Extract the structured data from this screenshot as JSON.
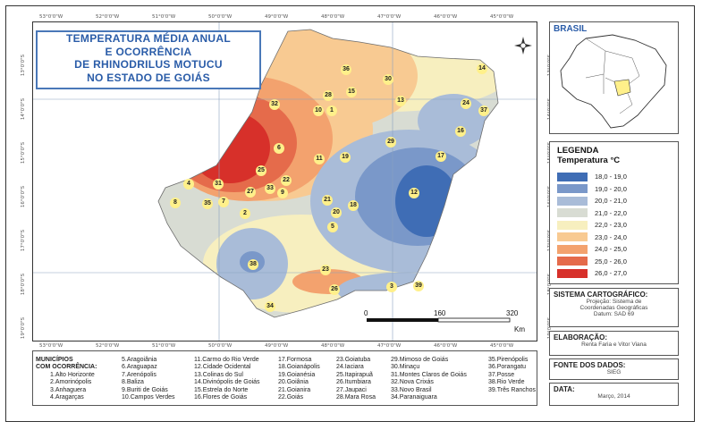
{
  "title": [
    "TEMPERATURA MÉDIA ANUAL",
    "E OCORRÊNCIA",
    "DE RHINODRILUS MOTUCU",
    "NO ESTADO DE GOIÁS"
  ],
  "inset_title": "BRASIL",
  "legend": {
    "heading": "LEGENDA",
    "subheading": "Temperatura °C",
    "classes": [
      {
        "range": "18,0 - 19,0",
        "color": "#3f6db5"
      },
      {
        "range": "19,0 - 20,0",
        "color": "#7a98c9"
      },
      {
        "range": "20,0 - 21,0",
        "color": "#a9bcd8"
      },
      {
        "range": "21,0 - 22,0",
        "color": "#d8dcd3"
      },
      {
        "range": "22,0 - 23,0",
        "color": "#f7efbf"
      },
      {
        "range": "23,0 - 24,0",
        "color": "#f8ca92"
      },
      {
        "range": "24,0 - 25,0",
        "color": "#f3a26e"
      },
      {
        "range": "25,0 - 26,0",
        "color": "#e56b4b"
      },
      {
        "range": "26,0 - 27,0",
        "color": "#d7302a"
      }
    ]
  },
  "cartographic": {
    "heading": "SISTEMA CARTOGRÁFICO:",
    "line1": "Projeção: Sistema de",
    "line2": "Coordenadas Geográficas",
    "datum": "Datum: SAD 69"
  },
  "elaboration": {
    "heading": "ELABORAÇÃO:",
    "text": "Renta Faria e Vitor Viana"
  },
  "data_source": {
    "heading": "FONTE DOS DADOS:",
    "text": "SIEG"
  },
  "date": {
    "heading": "DATA:",
    "text": "Março, 2014"
  },
  "scale": {
    "zero": "0",
    "mid": "160",
    "max": "320",
    "unit": "Km"
  },
  "municipalities_heading": [
    "MUNICÍPIOS",
    "COM OCORRÊNCIA:"
  ],
  "municipalities": [
    [
      "1.Alto Horizonte",
      "2.Amorinópolis",
      "3.Anhaguera",
      "4.Aragarças"
    ],
    [
      "5.Aragoiânia",
      "6.Araguapaz",
      "7.Arenópolis",
      "8.Baliza",
      "9.Buriti de Goiás",
      "10.Campos Verdes"
    ],
    [
      "11.Carmo do Rio Verde",
      "12.Cidade Ocidental",
      "13.Colinas do Sul",
      "14.Divinópolis de Goiás",
      "15.Estrela do Norte",
      "16.Flores de Goiás"
    ],
    [
      "17.Formosa",
      "18.Goianápolis",
      "19.Goianésia",
      "20.Goiânia",
      "21.Goianira",
      "22.Goiás"
    ],
    [
      "23.Goiatuba",
      "24.Iaciara",
      "25.Itapirapuã",
      "26.Itumbiara",
      "27.Jaupaci",
      "28.Mara Rosa"
    ],
    [
      "29.Mimoso de Goiás",
      "30.Minaçu",
      "31.Montes Claros de Goiás",
      "32.Nova Crixás",
      "33.Novo Brasil",
      "34.Paranaiguara"
    ],
    [
      "35.Pirenópolis",
      "36.Porangatu",
      "37.Posse",
      "38.Rio Verde",
      "39.Três Ranchos"
    ]
  ],
  "map_labels": [
    "1",
    "2",
    "3",
    "4",
    "5",
    "6",
    "7",
    "8",
    "9",
    "10",
    "11",
    "12",
    "13",
    "14",
    "15",
    "16",
    "17",
    "18",
    "19",
    "20",
    "21",
    "22",
    "23",
    "24",
    "25",
    "26",
    "27",
    "28",
    "29",
    "30",
    "31",
    "32",
    "33",
    "34",
    "35",
    "36",
    "37",
    "38",
    "39"
  ],
  "longitude_ticks": [
    "53°0'0\"W",
    "52°0'0\"W",
    "51°0'0\"W",
    "50°0'0\"W",
    "49°0'0\"W",
    "48°0'0\"W",
    "47°0'0\"W",
    "46°0'0\"W",
    "45°0'0\"W"
  ],
  "latitude_ticks": [
    "13°0'0\"S",
    "14°0'0\"S",
    "15°0'0\"S",
    "16°0'0\"S",
    "17°0'0\"S",
    "18°0'0\"S",
    "19°0'0\"S"
  ]
}
